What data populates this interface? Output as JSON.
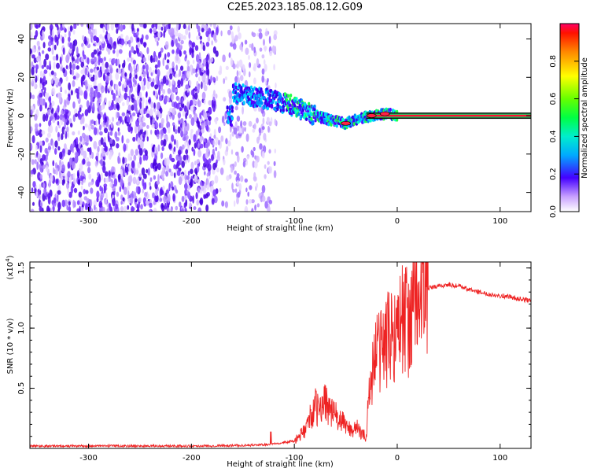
{
  "chart_data": [
    {
      "type": "heatmap",
      "title": "C2E5.2023.185.08.12.G09",
      "xlabel": "Height of straight line (km)",
      "ylabel": "Frequency (Hz)",
      "xlim": [
        -357,
        130
      ],
      "ylim": [
        -50,
        48
      ],
      "xticks": [
        -300,
        -200,
        -100,
        0,
        100
      ],
      "yticks": [
        -40,
        -20,
        0,
        20,
        40
      ],
      "colorbar": {
        "label": "Normalized spectral amplitude",
        "range": [
          0,
          1
        ],
        "ticks": [
          "0.0",
          "0.2",
          "0.4",
          "0.6",
          "0.8"
        ]
      },
      "ridge": [
        {
          "x": -160,
          "y": 12
        },
        {
          "x": -140,
          "y": 10
        },
        {
          "x": -120,
          "y": 8
        },
        {
          "x": -100,
          "y": 5
        },
        {
          "x": -80,
          "y": 0
        },
        {
          "x": -60,
          "y": -3
        },
        {
          "x": -50,
          "y": -4
        },
        {
          "x": -40,
          "y": -2
        },
        {
          "x": -25,
          "y": 0
        },
        {
          "x": -10,
          "y": 1
        },
        {
          "x": 0,
          "y": 0
        },
        {
          "x": 130,
          "y": 0
        }
      ]
    },
    {
      "type": "line",
      "xlabel": "Height of straight line (km)",
      "ylabel": "SNR (10 * v/v)",
      "yscale_label": "(x10",
      "yscale_exp": "4",
      "xlim": [
        -357,
        130
      ],
      "ylim": [
        0,
        1.55
      ],
      "xticks": [
        -300,
        -200,
        -100,
        0,
        100
      ],
      "yticks": [
        "0.5",
        "1.0",
        "1.5"
      ],
      "color": "#ee2222",
      "series": [
        {
          "x": [
            -357,
            -300,
            -250,
            -200,
            -150,
            -130,
            -120,
            -110,
            -100,
            -95,
            -90,
            -85,
            -80,
            -75,
            -70,
            -65,
            -60,
            -55,
            -50,
            -45,
            -40,
            -35,
            -30,
            -28,
            -25,
            -22,
            -20,
            -15,
            -10,
            -5,
            0,
            5,
            10,
            15,
            20,
            25,
            30,
            40,
            50,
            60,
            70,
            80,
            90,
            100,
            110,
            120,
            130
          ],
          "y": [
            0.02,
            0.02,
            0.02,
            0.02,
            0.025,
            0.03,
            0.04,
            0.05,
            0.06,
            0.1,
            0.15,
            0.25,
            0.35,
            0.3,
            0.42,
            0.3,
            0.28,
            0.22,
            0.2,
            0.15,
            0.18,
            0.12,
            0.1,
            0.4,
            0.6,
            0.75,
            0.8,
            0.85,
            0.9,
            0.95,
            1.0,
            1.1,
            1.05,
            1.15,
            1.25,
            1.3,
            1.33,
            1.35,
            1.36,
            1.35,
            1.32,
            1.3,
            1.28,
            1.27,
            1.26,
            1.24,
            1.23
          ]
        }
      ]
    }
  ]
}
